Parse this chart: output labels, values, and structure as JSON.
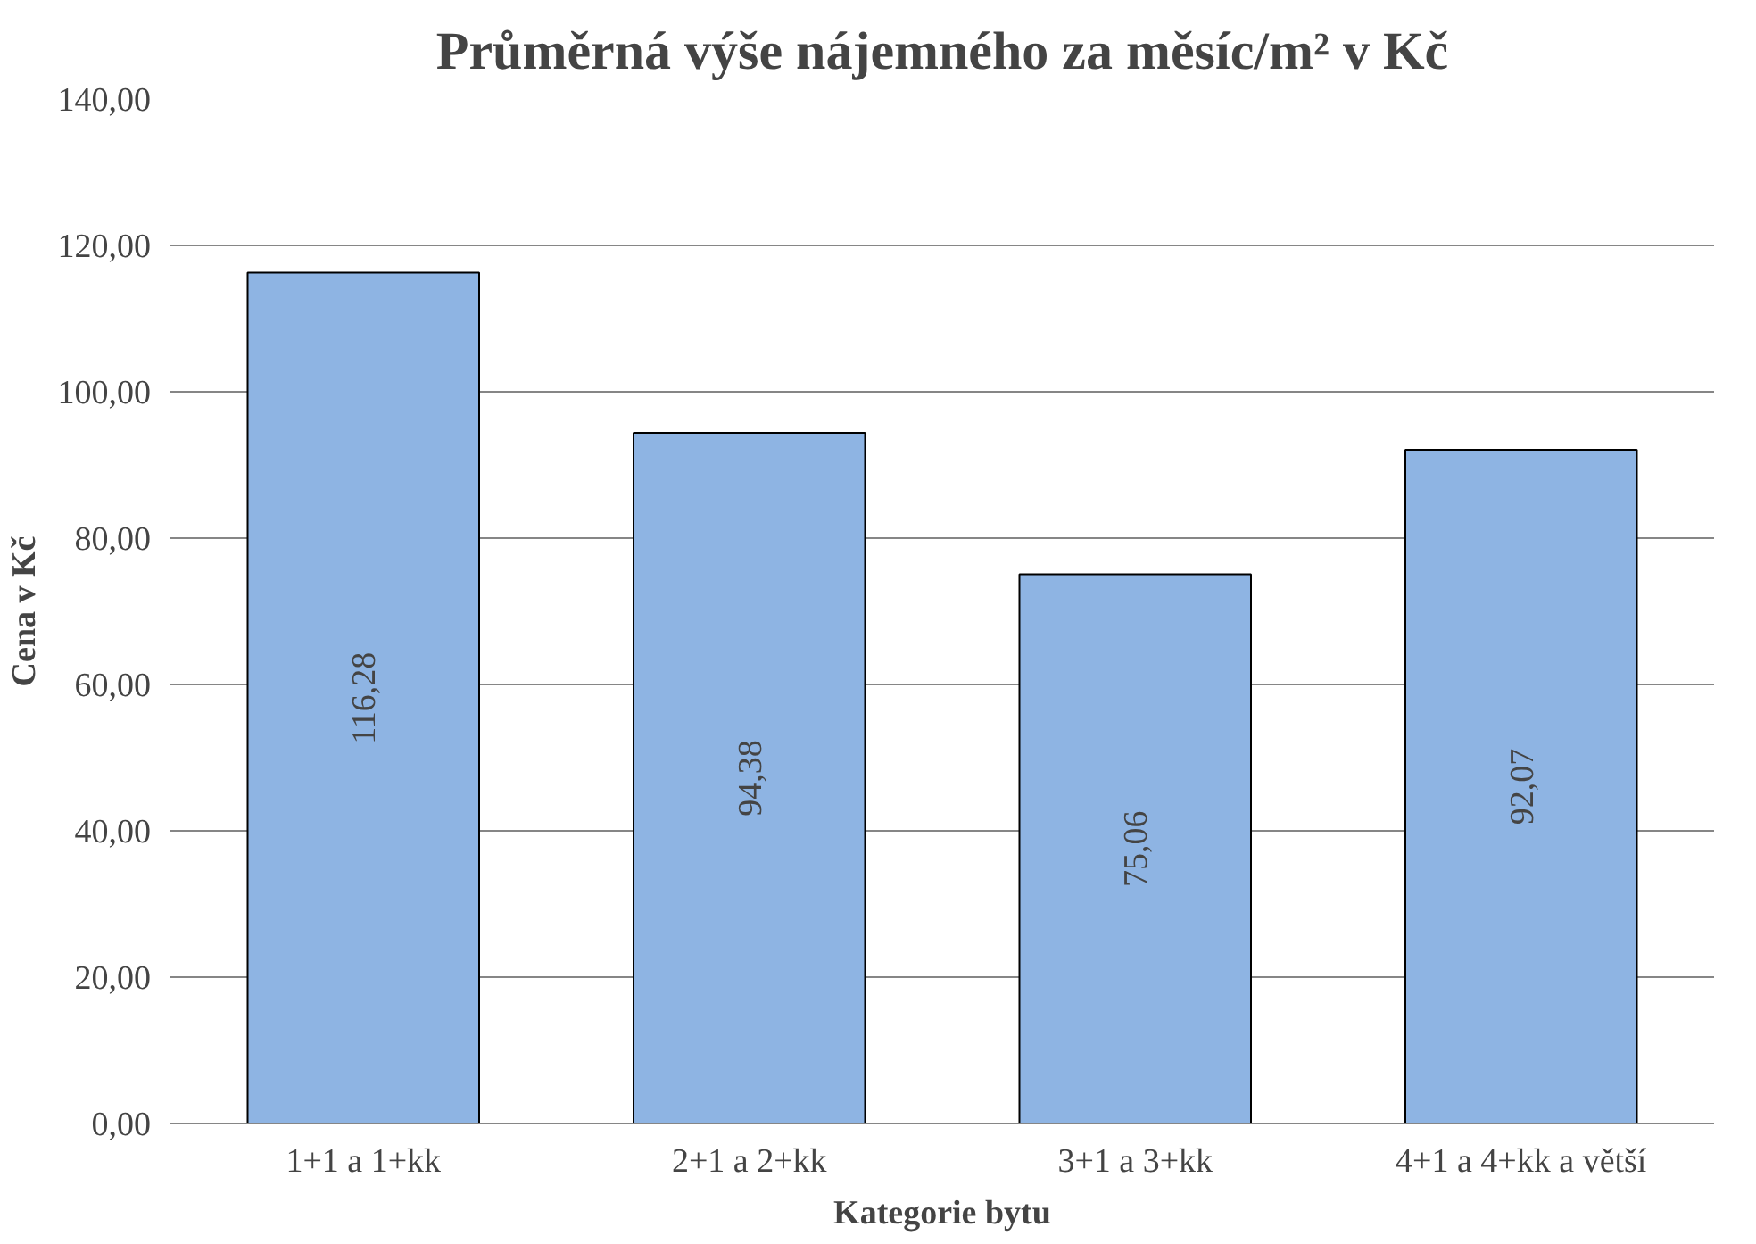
{
  "chart_data": {
    "type": "bar",
    "title": "Průměrná výše nájemného za měsíc/m² v Kč",
    "xlabel": "Kategorie bytu",
    "ylabel": "Cena v Kč",
    "categories": [
      "1+1 a 1+kk",
      "2+1 a 2+kk",
      "3+1 a 3+kk",
      "4+1 a 4+kk a větší"
    ],
    "values": [
      116.28,
      94.38,
      75.06,
      92.07
    ],
    "value_labels": [
      "116,28",
      "94,38",
      "75,06",
      "92,07"
    ],
    "color": "#8eb4e3",
    "ylim": [
      0,
      140
    ],
    "yticks": [
      {
        "value": 0,
        "label": "0,00"
      },
      {
        "value": 20,
        "label": "20,00"
      },
      {
        "value": 40,
        "label": "40,00"
      },
      {
        "value": 60,
        "label": "60,00"
      },
      {
        "value": 80,
        "label": "80,00"
      },
      {
        "value": 100,
        "label": "100,00"
      },
      {
        "value": 120,
        "label": "120,00"
      },
      {
        "value": 140,
        "label": "140,00"
      }
    ],
    "grid": "y"
  }
}
